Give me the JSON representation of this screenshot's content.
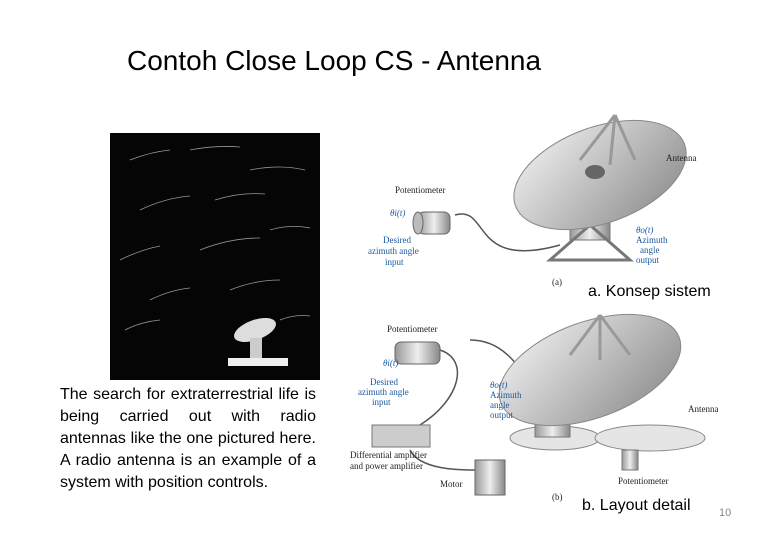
{
  "title": "Contoh Close Loop CS - Antenna",
  "description": "The search for extraterrestrial life is being carried out with radio antennas like the one pictured here. A radio antenna is an example of a system with position controls.",
  "figure_a": {
    "potentiometer": "Potentiometer",
    "antenna": "Antenna",
    "input_symbol": "θi(t)",
    "input_label": [
      "Desired",
      "azimuth angle",
      "input"
    ],
    "output_symbol": "θo(t)",
    "output_label": [
      "Azimuth",
      "angle",
      "output"
    ],
    "tag": "(a)",
    "caption": "a. Konsep sistem"
  },
  "figure_b": {
    "potentiometer_top": "Potentiometer",
    "input_symbol": "θi(t)",
    "input_label": [
      "Desired",
      "azimuth angle",
      "input"
    ],
    "output_symbol": "θo(t)",
    "output_label": [
      "Azimuth",
      "angle",
      "output"
    ],
    "antenna": "Antenna",
    "amplifier": [
      "Differential amplifier",
      "and power amplifier"
    ],
    "motor": "Motor",
    "potentiometer_bottom": "Potentiometer",
    "tag": "(b)",
    "caption": "b. Layout detail"
  },
  "page_number": "10"
}
